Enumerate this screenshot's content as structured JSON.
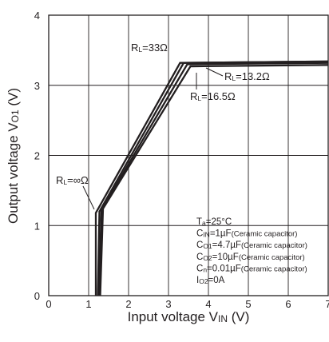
{
  "chart_data": {
    "type": "line",
    "title": "",
    "xlabel": {
      "main": "Input voltage V",
      "sub": "IN",
      "unit": " (V)"
    },
    "ylabel": {
      "main": "Output voltage V",
      "sub": "O1",
      "unit": " (V)"
    },
    "xlim": [
      0,
      7
    ],
    "ylim": [
      0,
      4
    ],
    "x_ticks": [
      "0",
      "1",
      "2",
      "3",
      "4",
      "5",
      "6",
      "7"
    ],
    "y_ticks": [
      "0",
      "1",
      "2",
      "3",
      "4"
    ],
    "grid": true,
    "series": [
      {
        "name": "RL=∞Ω",
        "label": {
          "prefix": "R",
          "sub": "L",
          "value": "=∞Ω"
        },
        "points": [
          [
            1.18,
            0
          ],
          [
            1.18,
            1.18
          ],
          [
            3.29,
            3.32
          ],
          [
            7,
            3.34
          ]
        ]
      },
      {
        "name": "RL=33Ω",
        "label": {
          "prefix": "R",
          "sub": "L",
          "value": "=33Ω"
        },
        "points": [
          [
            1.23,
            0
          ],
          [
            1.27,
            1.2
          ],
          [
            3.38,
            3.32
          ],
          [
            7,
            3.34
          ]
        ]
      },
      {
        "name": "RL=16.5Ω",
        "label": {
          "prefix": "R",
          "sub": "L",
          "value": "=16.5Ω"
        },
        "points": [
          [
            1.26,
            0
          ],
          [
            1.32,
            1.22
          ],
          [
            3.47,
            3.3
          ],
          [
            7,
            3.32
          ]
        ]
      },
      {
        "name": "RL=13.2Ω",
        "label": {
          "prefix": "R",
          "sub": "L",
          "value": "=13.2Ω"
        },
        "points": [
          [
            1.29,
            0
          ],
          [
            1.36,
            1.24
          ],
          [
            3.55,
            3.27
          ],
          [
            7,
            3.29
          ]
        ]
      }
    ],
    "conditions": [
      {
        "prefix": "T",
        "sub": "a",
        "main": "=25°C",
        "note": ""
      },
      {
        "prefix": "C",
        "sub": "IN",
        "main": "=1µF",
        "note": "(Ceramic capacitor)"
      },
      {
        "prefix": "C",
        "sub": "O1",
        "main": "=4.7µF",
        "note": "(Ceramic capacitor)"
      },
      {
        "prefix": "C",
        "sub": "O2",
        "main": "=10µF",
        "note": "(Ceramic capacitor)"
      },
      {
        "prefix": "C",
        "sub": "n",
        "main": "=0.01µF",
        "note": "(Ceramic capacitor)"
      },
      {
        "prefix": "I",
        "sub": "O2",
        "main": "=0A",
        "note": ""
      }
    ],
    "colors": {
      "line": "#231f20",
      "grid": "#231f20",
      "background": "#ffffff"
    }
  }
}
